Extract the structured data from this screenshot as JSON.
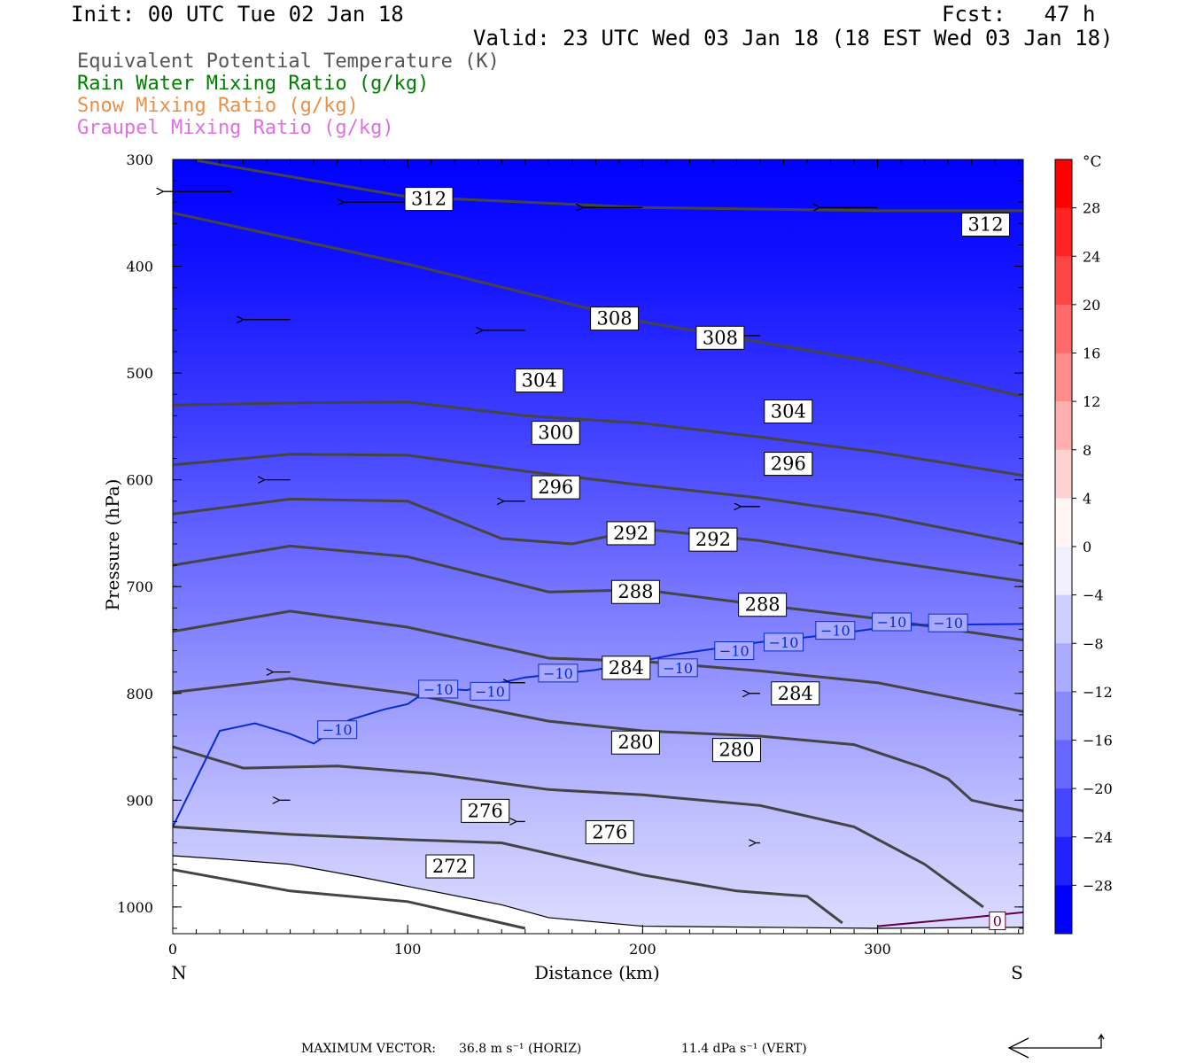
{
  "header": {
    "init": "Init: 00 UTC Tue 02 Jan 18",
    "fcst": "Fcst:   47 h",
    "valid": "Valid: 23 UTC Wed 03 Jan 18 (18 EST Wed 03 Jan 18)"
  },
  "legend": {
    "items": [
      {
        "text": "Equivalent Potential Temperature (K)",
        "color": "#555555"
      },
      {
        "text": "Rain Water Mixing Ratio (g/kg)",
        "color": "#008000"
      },
      {
        "text": "Snow Mixing Ratio (g/kg)",
        "color": "#e8904a"
      },
      {
        "text": "Graupel Mixing Ratio (g/kg)",
        "color": "#e070e0"
      }
    ]
  },
  "chart_data": {
    "type": "cross-section",
    "xlabel": "Distance (km)",
    "ylabel": "Pressure (hPa)",
    "xlim": [
      0,
      362
    ],
    "ylim": [
      1025,
      300
    ],
    "x_ticks": [
      0,
      100,
      200,
      300
    ],
    "y_ticks": [
      300,
      400,
      500,
      600,
      700,
      800,
      900,
      1000
    ],
    "x_end_labels": {
      "left": "N",
      "right": "S"
    },
    "colorbar": {
      "unit": "°C",
      "min": -32,
      "max": 32,
      "step": 4,
      "labels": [
        28,
        24,
        20,
        16,
        12,
        8,
        4,
        0,
        -4,
        -8,
        -12,
        -16,
        -20,
        -24,
        -28
      ],
      "cold_color": "#0000ff",
      "warm_color": "#ff0000"
    },
    "theta_e_contours": [
      {
        "value": 312,
        "points": [
          [
            10,
            301
          ],
          [
            100,
            335
          ],
          [
            200,
            345
          ],
          [
            300,
            348
          ],
          [
            362,
            348
          ]
        ],
        "labels": [
          [
            109,
            337
          ],
          [
            346,
            361
          ]
        ]
      },
      {
        "value": 308,
        "points": [
          [
            0,
            350
          ],
          [
            100,
            398
          ],
          [
            200,
            452
          ],
          [
            300,
            490
          ],
          [
            362,
            522
          ]
        ],
        "labels": [
          [
            188,
            449
          ],
          [
            233,
            467
          ]
        ]
      },
      {
        "value": 304,
        "points": [
          [
            0,
            530
          ],
          [
            50,
            528
          ],
          [
            100,
            527
          ],
          [
            150,
            540
          ],
          [
            200,
            547
          ],
          [
            250,
            560
          ],
          [
            300,
            574
          ],
          [
            362,
            596
          ]
        ],
        "labels": [
          [
            156,
            507
          ],
          [
            262,
            536
          ]
        ]
      },
      {
        "value": 300,
        "points": [
          [
            0,
            586
          ],
          [
            50,
            576
          ],
          [
            100,
            577
          ],
          [
            150,
            592
          ],
          [
            200,
            605
          ],
          [
            250,
            617
          ],
          [
            300,
            633
          ],
          [
            362,
            660
          ]
        ],
        "labels": [
          [
            163,
            556
          ],
          [
            262,
            585
          ]
        ]
      },
      {
        "value": 296,
        "points": [
          [
            0,
            632
          ],
          [
            50,
            618
          ],
          [
            100,
            620
          ],
          [
            140,
            655
          ],
          [
            170,
            660
          ],
          [
            200,
            646
          ],
          [
            250,
            657
          ],
          [
            300,
            675
          ],
          [
            362,
            695
          ]
        ],
        "labels": [
          [
            163,
            607
          ],
          [
            262,
            585
          ]
        ]
      },
      {
        "value": 292,
        "points": [
          [
            0,
            680
          ],
          [
            50,
            662
          ],
          [
            100,
            672
          ],
          [
            160,
            705
          ],
          [
            200,
            703
          ],
          [
            250,
            717
          ],
          [
            300,
            730
          ],
          [
            362,
            750
          ]
        ],
        "labels": [
          [
            195,
            650
          ],
          [
            230,
            656
          ]
        ]
      },
      {
        "value": 288,
        "points": [
          [
            0,
            742
          ],
          [
            50,
            723
          ],
          [
            100,
            738
          ],
          [
            160,
            767
          ],
          [
            200,
            770
          ],
          [
            250,
            779
          ],
          [
            300,
            790
          ],
          [
            362,
            817
          ]
        ],
        "labels": [
          [
            197,
            705
          ],
          [
            251,
            717
          ]
        ]
      },
      {
        "value": 284,
        "points": [
          [
            0,
            799
          ],
          [
            50,
            786
          ],
          [
            100,
            800
          ],
          [
            160,
            826
          ],
          [
            200,
            835
          ],
          [
            250,
            840
          ],
          [
            290,
            848
          ],
          [
            320,
            870
          ],
          [
            330,
            880
          ],
          [
            340,
            900
          ],
          [
            350,
            905
          ],
          [
            362,
            910
          ]
        ],
        "labels": [
          [
            193,
            776
          ],
          [
            265,
            800
          ]
        ]
      },
      {
        "value": 280,
        "points": [
          [
            0,
            850
          ],
          [
            30,
            870
          ],
          [
            70,
            868
          ],
          [
            110,
            875
          ],
          [
            160,
            890
          ],
          [
            200,
            895
          ],
          [
            250,
            905
          ],
          [
            290,
            925
          ],
          [
            320,
            960
          ],
          [
            345,
            1000
          ]
        ],
        "labels": [
          [
            197,
            846
          ],
          [
            240,
            853
          ]
        ]
      },
      {
        "value": 276,
        "points": [
          [
            0,
            925
          ],
          [
            50,
            932
          ],
          [
            100,
            937
          ],
          [
            140,
            940
          ],
          [
            160,
            950
          ],
          [
            180,
            960
          ],
          [
            200,
            970
          ],
          [
            240,
            985
          ],
          [
            270,
            990
          ],
          [
            285,
            1015
          ]
        ],
        "labels": [
          [
            133,
            910
          ],
          [
            186,
            930
          ]
        ]
      },
      {
        "value": 272,
        "points": [
          [
            0,
            965
          ],
          [
            50,
            985
          ],
          [
            100,
            995
          ],
          [
            130,
            1010
          ],
          [
            150,
            1020
          ]
        ],
        "labels": [
          [
            118,
            962
          ]
        ]
      }
    ],
    "temperature_contour_minus10": {
      "value": -10,
      "points": [
        [
          0,
          925
        ],
        [
          10,
          880
        ],
        [
          20,
          835
        ],
        [
          35,
          828
        ],
        [
          50,
          838
        ],
        [
          60,
          847
        ],
        [
          75,
          825
        ],
        [
          90,
          815
        ],
        [
          100,
          810
        ],
        [
          110,
          795
        ],
        [
          125,
          797
        ],
        [
          150,
          785
        ],
        [
          180,
          778
        ],
        [
          215,
          763
        ],
        [
          250,
          752
        ],
        [
          280,
          745
        ],
        [
          310,
          736
        ],
        [
          362,
          735
        ]
      ],
      "labels": [
        [
          70,
          834
        ],
        [
          113,
          796
        ],
        [
          135,
          798
        ],
        [
          164,
          781
        ],
        [
          215,
          776
        ],
        [
          239,
          760
        ],
        [
          260,
          752
        ],
        [
          282,
          741
        ],
        [
          306,
          733
        ],
        [
          330,
          734
        ]
      ]
    },
    "temperature_contour_zero": {
      "value": 0,
      "points": [
        [
          300,
          1018
        ],
        [
          330,
          1012
        ],
        [
          362,
          1005
        ]
      ],
      "labels": [
        [
          351,
          1013
        ]
      ]
    },
    "terrain_pressure": [
      [
        0,
        952
      ],
      [
        20,
        955
      ],
      [
        50,
        960
      ],
      [
        80,
        972
      ],
      [
        110,
        985
      ],
      [
        140,
        998
      ],
      [
        160,
        1010
      ],
      [
        200,
        1018
      ],
      [
        250,
        1019
      ],
      [
        300,
        1020
      ],
      [
        362,
        1019
      ]
    ],
    "wind_vectors_sample": [
      {
        "x": 25,
        "p": 330,
        "u": -32
      },
      {
        "x": 100,
        "p": 340,
        "u": -30
      },
      {
        "x": 200,
        "p": 345,
        "u": -28
      },
      {
        "x": 300,
        "p": 345,
        "u": -27
      },
      {
        "x": 50,
        "p": 450,
        "u": -22
      },
      {
        "x": 150,
        "p": 460,
        "u": -20
      },
      {
        "x": 250,
        "p": 465,
        "u": -18
      },
      {
        "x": 50,
        "p": 600,
        "u": -12
      },
      {
        "x": 150,
        "p": 620,
        "u": -10
      },
      {
        "x": 250,
        "p": 625,
        "u": -9
      },
      {
        "x": 50,
        "p": 780,
        "u": -8
      },
      {
        "x": 150,
        "p": 790,
        "u": -7
      },
      {
        "x": 250,
        "p": 800,
        "u": -5
      },
      {
        "x": 50,
        "p": 900,
        "u": -5
      },
      {
        "x": 150,
        "p": 920,
        "u": -4
      },
      {
        "x": 250,
        "p": 940,
        "u": -2
      }
    ]
  },
  "footer": {
    "max_vector_label": "MAXIMUM VECTOR:",
    "horiz": "36.8 m s⁻¹ (HORIZ)",
    "vert": "11.4 dPa s⁻¹ (VERT)"
  }
}
